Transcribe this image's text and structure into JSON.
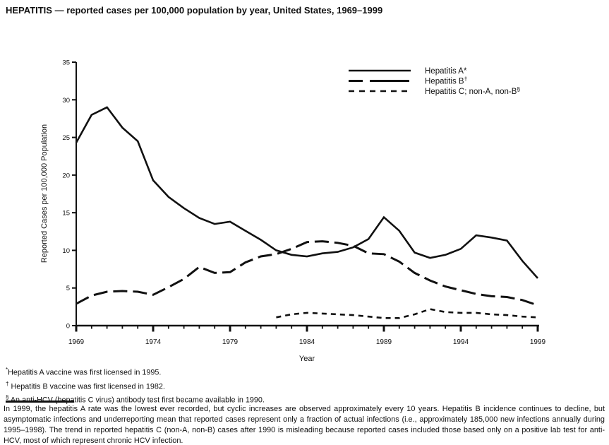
{
  "title": "HEPATITIS — reported cases per 100,000 population by year, United States, 1969–1999",
  "chart_data": {
    "type": "line",
    "x_label": "Year",
    "y_label": "Reported Cases per 100,000 Population",
    "x_range": [
      1969,
      1999
    ],
    "y_range": [
      0,
      35
    ],
    "y_ticks": [
      0,
      5,
      10,
      15,
      20,
      25,
      30,
      35
    ],
    "x_ticks": [
      1969,
      1974,
      1979,
      1984,
      1989,
      1994,
      1999
    ],
    "grid": false,
    "legend_position": "top-right",
    "line_color": "#111111",
    "x": [
      1969,
      1970,
      1971,
      1972,
      1973,
      1974,
      1975,
      1976,
      1977,
      1978,
      1979,
      1980,
      1981,
      1982,
      1983,
      1984,
      1985,
      1986,
      1987,
      1988,
      1989,
      1990,
      1991,
      1992,
      1993,
      1994,
      1995,
      1996,
      1997,
      1998,
      1999
    ],
    "series": [
      {
        "name": "Hepatitis A*",
        "sup": "",
        "slug": "hepatitis-a",
        "line_style": "solid",
        "values": [
          24.3,
          28.0,
          29.0,
          26.3,
          24.5,
          19.3,
          17.1,
          15.6,
          14.3,
          13.5,
          13.8,
          12.6,
          11.4,
          10.0,
          9.4,
          9.2,
          9.6,
          9.8,
          10.4,
          11.5,
          14.4,
          12.6,
          9.7,
          9.0,
          9.4,
          10.2,
          12.0,
          11.7,
          11.3,
          8.6,
          6.3
        ]
      },
      {
        "name": "Hepatitis B",
        "sup": "†",
        "slug": "hepatitis-b",
        "line_style": "long-dash",
        "values": [
          2.9,
          4.0,
          4.5,
          4.6,
          4.5,
          4.1,
          5.1,
          6.2,
          7.8,
          7.0,
          7.1,
          8.4,
          9.2,
          9.5,
          10.2,
          11.1,
          11.2,
          11.0,
          10.6,
          9.6,
          9.5,
          8.5,
          7.0,
          6.0,
          5.2,
          4.7,
          4.2,
          3.9,
          3.8,
          3.4,
          2.7
        ]
      },
      {
        "name": "Hepatitis C; non-A, non-B",
        "sup": "§",
        "slug": "hepatitis-c",
        "line_style": "short-dash",
        "values": [
          null,
          null,
          null,
          null,
          null,
          null,
          null,
          null,
          null,
          null,
          null,
          null,
          null,
          1.1,
          1.5,
          1.7,
          1.6,
          1.5,
          1.4,
          1.2,
          1.0,
          1.0,
          1.5,
          2.2,
          1.8,
          1.7,
          1.7,
          1.5,
          1.4,
          1.2,
          1.1
        ]
      }
    ]
  },
  "footnotes": [
    {
      "marker": "*",
      "text": "Hepatitis A vaccine was first licensed in 1995."
    },
    {
      "marker": "†",
      "text": " Hepatitis B vaccine was first licensed in 1982."
    },
    {
      "marker": "§",
      "text": " An anti-HCV (hepatitis C virus) antibody test first became available in 1990."
    }
  ],
  "commentary": "In 1999, the hepatitis A rate was the lowest ever recorded, but cyclic increases are observed approximately every 10 years. Hepatitis B incidence continues to decline, but asymptomatic infections and underreporting mean that reported cases represent only a fraction of actual infections (i.e., approximately 185,000 new infections annually during 1995–1998). The trend in reported hepatitis C (non-A, non-B) cases after 1990 is misleading because reported cases included those based only on a positive lab test for anti-HCV, most of which represent chronic HCV infection."
}
